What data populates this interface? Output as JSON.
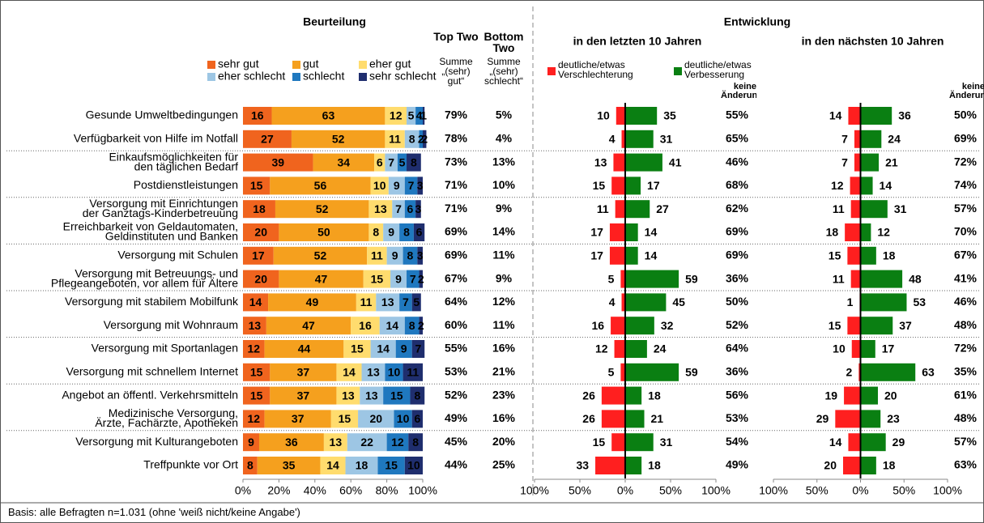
{
  "chart_data": {
    "type": "stacked-bar-with-diverging-panels",
    "title": "Beurteilung",
    "categories": [
      [
        "Gesunde Umweltbedingungen"
      ],
      [
        "Verfügbarkeit von Hilfe im Notfall"
      ],
      [
        "Einkaufsmöglichkeiten für",
        "den täglichen Bedarf"
      ],
      [
        "Postdienstleistungen"
      ],
      [
        "Versorgung mit Einrichtungen",
        "der Ganztags-Kinderbetreuung"
      ],
      [
        "Erreichbarkeit von Geldautomaten,",
        "Geldinstituten und Banken"
      ],
      [
        "Versorgung mit Schulen"
      ],
      [
        "Versorgung mit Betreuungs- und",
        "Pflegeangeboten, vor allem für Ältere"
      ],
      [
        "Versorgung mit stabilem Mobilfunk"
      ],
      [
        "Versorgung mit Wohnraum"
      ],
      [
        "Versorgung mit Sportanlagen"
      ],
      [
        "Versorgung mit schnellem Internet"
      ],
      [
        "Angebot an öffentl. Verkehrsmitteln"
      ],
      [
        "Medizinische Versorgung,",
        "Ärzte, Fachärzte, Apotheken"
      ],
      [
        "Versorgung mit Kulturangeboten"
      ],
      [
        "Treffpunkte vor Ort"
      ]
    ],
    "series": [
      {
        "name": "sehr gut",
        "color": "#f0641e",
        "label_color": "#000000",
        "values": [
          16,
          27,
          39,
          15,
          18,
          20,
          17,
          20,
          14,
          13,
          12,
          15,
          15,
          12,
          9,
          8
        ]
      },
      {
        "name": "gut",
        "color": "#f5a01e",
        "label_color": "#000000",
        "values": [
          63,
          52,
          34,
          56,
          52,
          50,
          52,
          47,
          49,
          47,
          44,
          37,
          37,
          37,
          36,
          35
        ]
      },
      {
        "name": "eher gut",
        "color": "#ffdc6e",
        "label_color": "#000000",
        "values": [
          12,
          11,
          6,
          10,
          13,
          8,
          11,
          15,
          11,
          16,
          15,
          14,
          13,
          15,
          13,
          14
        ]
      },
      {
        "name": "eher schlecht",
        "color": "#9dc6e4",
        "label_color": "#000000",
        "values": [
          5,
          8,
          7,
          9,
          7,
          9,
          9,
          9,
          13,
          14,
          14,
          13,
          13,
          20,
          22,
          18
        ]
      },
      {
        "name": "schlecht",
        "color": "#1f78bf",
        "label_color": "#ffffff",
        "values": [
          4,
          2,
          5,
          7,
          6,
          8,
          8,
          7,
          7,
          8,
          9,
          10,
          15,
          10,
          12,
          15
        ]
      },
      {
        "name": "sehr schlecht",
        "color": "#1f2e6e",
        "label_color": "#ffffff",
        "values": [
          1,
          2,
          8,
          3,
          3,
          6,
          3,
          2,
          5,
          2,
          7,
          11,
          8,
          6,
          8,
          10
        ]
      }
    ],
    "xlim": [
      0,
      100
    ],
    "xticks": [
      {
        "value": 0,
        "label": "0%"
      },
      {
        "value": 20,
        "label": "20%"
      },
      {
        "value": 40,
        "label": "40%"
      },
      {
        "value": 60,
        "label": "60%"
      },
      {
        "value": 80,
        "label": "80%"
      },
      {
        "value": 100,
        "label": "100%"
      }
    ],
    "top_two": {
      "title": "Top Two",
      "subtitle": "Summe „(sehr) gut“",
      "values": [
        79,
        78,
        73,
        71,
        71,
        69,
        69,
        67,
        64,
        60,
        55,
        53,
        52,
        49,
        45,
        44
      ],
      "value_labels": [
        "79%",
        "78%",
        "73%",
        "71%",
        "71%",
        "69%",
        "69%",
        "67%",
        "64%",
        "60%",
        "55%",
        "53%",
        "52%",
        "49%",
        "45%",
        "44%"
      ]
    },
    "bottom_two": {
      "title": "Bottom Two",
      "subtitle": "Summe „(sehr) schlecht“",
      "values": [
        5,
        4,
        13,
        10,
        9,
        14,
        11,
        9,
        12,
        11,
        16,
        21,
        23,
        16,
        20,
        25
      ],
      "value_labels": [
        "5%",
        "4%",
        "13%",
        "10%",
        "9%",
        "14%",
        "11%",
        "9%",
        "12%",
        "11%",
        "16%",
        "21%",
        "23%",
        "16%",
        "20%",
        "25%"
      ]
    },
    "development": {
      "title": "Entwicklung",
      "legend": [
        {
          "name": "deutliche/etwas Verschlechterung",
          "color": "#ff1f1f"
        },
        {
          "name": "deutliche/etwas Verbesserung",
          "color": "#0a7f12"
        }
      ],
      "panels": [
        {
          "title": "in den letzten 10 Jahren",
          "series": [
            {
              "values": [
                10,
                4,
                13,
                15,
                11,
                17,
                17,
                5,
                4,
                16,
                12,
                5,
                26,
                26,
                15,
                33
              ]
            },
            {
              "values": [
                35,
                31,
                41,
                17,
                27,
                14,
                14,
                59,
                45,
                32,
                24,
                59,
                18,
                21,
                31,
                18
              ]
            }
          ],
          "no_change": {
            "title": "keine Änderung",
            "values": [
              55,
              65,
              46,
              68,
              62,
              69,
              69,
              36,
              50,
              52,
              64,
              36,
              56,
              53,
              54,
              49
            ],
            "value_labels": [
              "55%",
              "65%",
              "46%",
              "68%",
              "62%",
              "69%",
              "69%",
              "36%",
              "50%",
              "52%",
              "64%",
              "36%",
              "56%",
              "53%",
              "54%",
              "49%"
            ]
          },
          "xlim": [
            -100,
            100
          ],
          "xticks": [
            {
              "value": -100,
              "label": "100%"
            },
            {
              "value": -50,
              "label": "50%"
            },
            {
              "value": 0,
              "label": "0%"
            },
            {
              "value": 50,
              "label": "50%"
            },
            {
              "value": 100,
              "label": "100%"
            }
          ]
        },
        {
          "title": "in den nächsten 10 Jahren",
          "series": [
            {
              "values": [
                14,
                7,
                7,
                12,
                11,
                18,
                15,
                11,
                1,
                15,
                10,
                2,
                19,
                29,
                14,
                20
              ]
            },
            {
              "values": [
                36,
                24,
                21,
                14,
                31,
                12,
                18,
                48,
                53,
                37,
                17,
                63,
                20,
                23,
                29,
                18
              ]
            }
          ],
          "no_change": {
            "title": "keine Änderung",
            "values": [
              50,
              69,
              72,
              74,
              57,
              70,
              67,
              41,
              46,
              48,
              72,
              35,
              61,
              48,
              57,
              63
            ],
            "value_labels": [
              "50%",
              "69%",
              "72%",
              "74%",
              "57%",
              "70%",
              "67%",
              "41%",
              "46%",
              "48%",
              "72%",
              "35%",
              "61%",
              "48%",
              "57%",
              "63%"
            ]
          },
          "xlim": [
            -100,
            100
          ],
          "xticks": [
            {
              "value": -100,
              "label": "100%"
            },
            {
              "value": -50,
              "label": "50%"
            },
            {
              "value": 0,
              "label": "0%"
            },
            {
              "value": 50,
              "label": "50%"
            },
            {
              "value": 100,
              "label": "100%"
            }
          ]
        }
      ]
    },
    "footnote": "Basis: alle Befragten n=1.031 (ohne 'weiß nicht/keine Angabe')"
  }
}
